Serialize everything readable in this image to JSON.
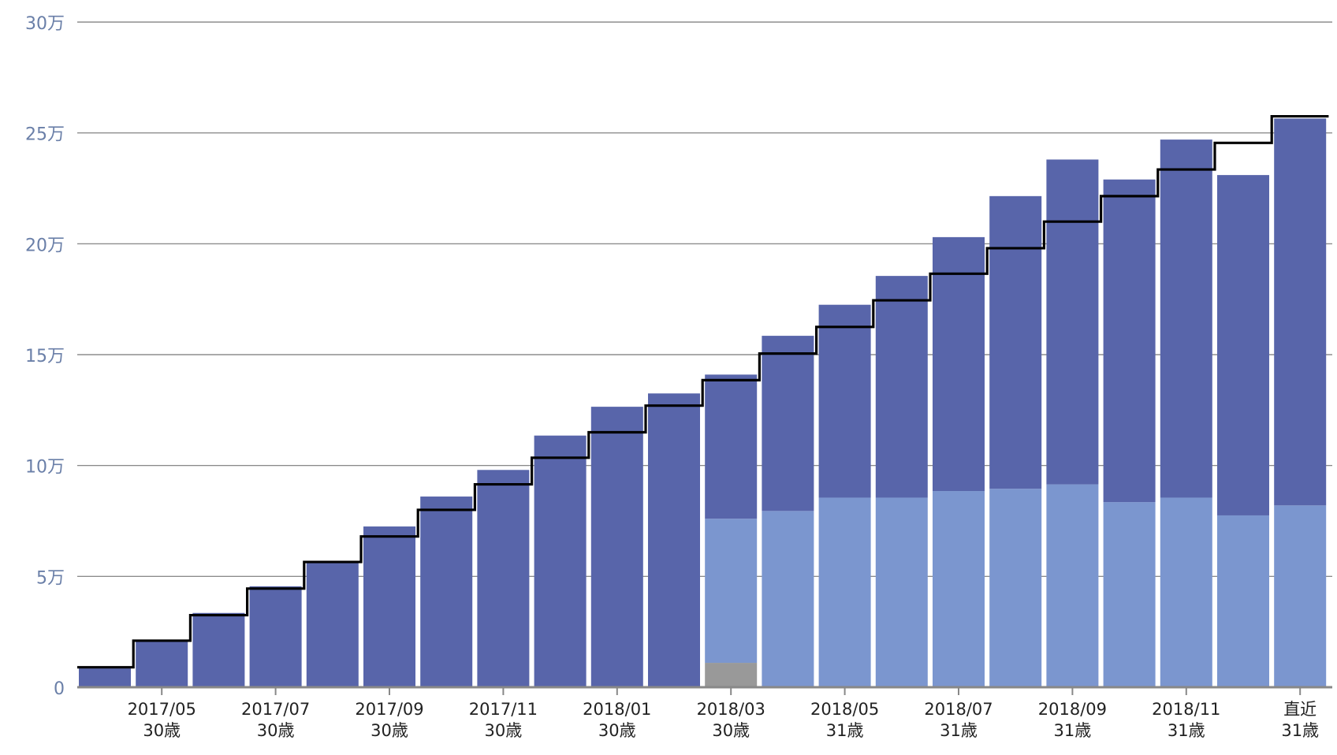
{
  "chart_data": {
    "type": "bar",
    "stacked": true,
    "yticks": [
      "0",
      "5万",
      "10万",
      "15万",
      "20万",
      "25万",
      "30万"
    ],
    "ylim": [
      0,
      300000
    ],
    "grid": true,
    "x_tick_labels": [
      {
        "index": 1,
        "line1": "2017/05",
        "line2": "30歳"
      },
      {
        "index": 3,
        "line1": "2017/07",
        "line2": "30歳"
      },
      {
        "index": 5,
        "line1": "2017/09",
        "line2": "30歳"
      },
      {
        "index": 7,
        "line1": "2017/11",
        "line2": "30歳"
      },
      {
        "index": 9,
        "line1": "2018/01",
        "line2": "30歳"
      },
      {
        "index": 11,
        "line1": "2018/03",
        "line2": "30歳"
      },
      {
        "index": 13,
        "line1": "2018/05",
        "line2": "31歳"
      },
      {
        "index": 15,
        "line1": "2018/07",
        "line2": "31歳"
      },
      {
        "index": 17,
        "line1": "2018/09",
        "line2": "31歳"
      },
      {
        "index": 19,
        "line1": "2018/11",
        "line2": "31歳"
      },
      {
        "index": 21,
        "line1": "直近",
        "line2": "31歳"
      }
    ],
    "colors": {
      "gray": "#999999",
      "light": "#7b96cf",
      "dark": "#5865aa",
      "line": "#000000",
      "tick": "#6a7fa8",
      "axis": "#888888"
    },
    "series": [
      {
        "color_key": "gray",
        "values": [
          0,
          0,
          0,
          0,
          0,
          0,
          0,
          0,
          0,
          0,
          0,
          11000,
          0,
          0,
          0,
          0,
          0,
          0,
          0,
          0,
          0,
          0
        ]
      },
      {
        "color_key": "light",
        "values": [
          0,
          0,
          0,
          0,
          0,
          0,
          0,
          0,
          0,
          0,
          0,
          65000,
          79500,
          85500,
          85500,
          88500,
          89500,
          91500,
          83500,
          85500,
          77500,
          82000
        ]
      },
      {
        "color_key": "dark",
        "values": [
          8500,
          21000,
          33500,
          45500,
          56500,
          72500,
          86000,
          98000,
          113500,
          126500,
          132500,
          65000,
          79000,
          87000,
          100000,
          114500,
          132000,
          146500,
          145500,
          161500,
          153500,
          174500
        ]
      }
    ],
    "step_line": [
      9000,
      21000,
      32500,
      44500,
      56500,
      68000,
      80000,
      91500,
      103500,
      115000,
      127000,
      138500,
      150500,
      162500,
      174500,
      186500,
      198000,
      210000,
      221500,
      233500,
      245500,
      257500
    ]
  }
}
